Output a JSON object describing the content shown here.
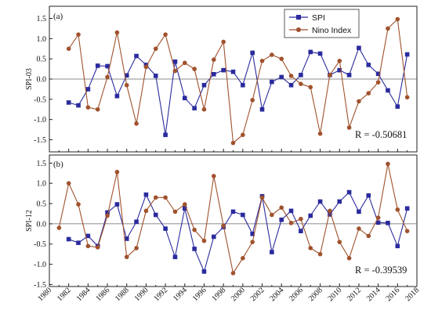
{
  "chart_data": [
    {
      "type": "line",
      "panel_label": "(a)",
      "ylabel": "SPI-03",
      "xlim": [
        1980,
        2018
      ],
      "ylim": [
        -1.8,
        1.8
      ],
      "yticks": [
        "-1.5",
        "-1.0",
        "-0.5",
        "0.0",
        "0.5",
        "1.0",
        "1.5"
      ],
      "annotation": "R = -0.50681",
      "legend_position": "top-center",
      "series": [
        {
          "name": "SPI",
          "color": "#2b2b9e",
          "marker": "square",
          "x": [
            1982,
            1983,
            1984,
            1985,
            1986,
            1987,
            1988,
            1989,
            1990,
            1991,
            1992,
            1993,
            1994,
            1995,
            1996,
            1997,
            1998,
            1999,
            2000,
            2001,
            2002,
            2003,
            2004,
            2005,
            2006,
            2007,
            2008,
            2009,
            2010,
            2011,
            2012,
            2013,
            2014,
            2015,
            2016,
            2017
          ],
          "values": [
            -0.58,
            -0.65,
            -0.25,
            0.33,
            0.32,
            -0.42,
            0.09,
            0.57,
            0.35,
            0.08,
            -1.38,
            0.43,
            -0.47,
            -0.72,
            -0.15,
            0.12,
            0.22,
            0.18,
            -0.15,
            0.65,
            -0.75,
            -0.07,
            0.05,
            -0.15,
            0.1,
            0.67,
            0.63,
            0.1,
            0.22,
            0.1,
            0.77,
            0.35,
            0.13,
            -0.28,
            -0.68,
            0.61
          ]
        },
        {
          "name": "Nino Index",
          "color": "#a0522d",
          "marker": "circle",
          "x": [
            1982,
            1983,
            1984,
            1985,
            1986,
            1987,
            1988,
            1989,
            1990,
            1991,
            1992,
            1993,
            1994,
            1995,
            1996,
            1997,
            1998,
            1999,
            2000,
            2001,
            2002,
            2003,
            2004,
            2005,
            2006,
            2007,
            2008,
            2009,
            2010,
            2011,
            2012,
            2013,
            2014,
            2015,
            2016,
            2017
          ],
          "values": [
            0.75,
            1.1,
            -0.7,
            -0.75,
            0.05,
            1.15,
            -0.15,
            -1.1,
            0.3,
            0.75,
            1.1,
            0.2,
            0.4,
            0.25,
            -0.75,
            0.48,
            0.92,
            -1.58,
            -1.38,
            -0.52,
            0.45,
            0.6,
            0.5,
            0.08,
            -0.12,
            -0.2,
            -1.35,
            0.1,
            0.45,
            -1.2,
            -0.55,
            -0.35,
            -0.08,
            1.25,
            1.48,
            -0.45
          ]
        }
      ]
    },
    {
      "type": "line",
      "panel_label": "(b)",
      "ylabel": "SPI-12",
      "xlim": [
        1980,
        2018
      ],
      "ylim": [
        -1.55,
        1.7
      ],
      "yticks": [
        "-1.5",
        "-1.0",
        "-0.5",
        "0.0",
        "0.5",
        "1.0",
        "1.5"
      ],
      "xticks": [
        "1980",
        "1982",
        "1984",
        "1986",
        "1988",
        "1990",
        "1992",
        "1994",
        "1996",
        "1998",
        "2000",
        "2002",
        "2004",
        "2006",
        "2008",
        "2010",
        "2012",
        "2014",
        "2016",
        "2018"
      ],
      "annotation": "R = -0.39539",
      "series": [
        {
          "name": "SPI",
          "color": "#2b2b9e",
          "marker": "square",
          "x": [
            1982,
            1983,
            1984,
            1985,
            1986,
            1987,
            1988,
            1989,
            1990,
            1991,
            1992,
            1993,
            1994,
            1995,
            1996,
            1997,
            1998,
            1999,
            2000,
            2001,
            2002,
            2003,
            2004,
            2005,
            2006,
            2007,
            2008,
            2009,
            2010,
            2011,
            2012,
            2013,
            2014,
            2015,
            2016,
            2017
          ],
          "values": [
            -0.38,
            -0.47,
            -0.3,
            -0.55,
            0.28,
            0.48,
            -0.37,
            0.05,
            0.72,
            0.22,
            -0.12,
            -0.82,
            0.38,
            -0.62,
            -1.18,
            -0.32,
            -0.08,
            0.3,
            0.22,
            -0.25,
            0.68,
            -0.7,
            0.1,
            0.32,
            -0.18,
            0.2,
            0.55,
            0.23,
            0.55,
            0.78,
            0.3,
            0.7,
            0.03,
            0.02,
            -0.55,
            0.38
          ]
        },
        {
          "name": "Nino Index",
          "color": "#a0522d",
          "marker": "circle",
          "x": [
            1981,
            1982,
            1983,
            1984,
            1985,
            1986,
            1987,
            1988,
            1989,
            1990,
            1991,
            1992,
            1993,
            1994,
            1995,
            1996,
            1997,
            1998,
            1999,
            2000,
            2001,
            2002,
            2003,
            2004,
            2005,
            2006,
            2007,
            2008,
            2009,
            2010,
            2011,
            2012,
            2013,
            2014,
            2015,
            2016,
            2017
          ],
          "values": [
            -0.1,
            1.0,
            0.48,
            -0.55,
            -0.58,
            0.2,
            1.28,
            -0.82,
            -0.6,
            0.32,
            0.65,
            0.65,
            0.3,
            0.48,
            -0.15,
            -0.42,
            1.18,
            -0.05,
            -1.22,
            -0.85,
            -0.45,
            0.65,
            0.22,
            0.4,
            0.02,
            0.12,
            -0.6,
            -0.75,
            0.32,
            -0.45,
            -0.85,
            -0.12,
            -0.3,
            0.15,
            1.48,
            0.35,
            -0.18
          ]
        }
      ]
    }
  ]
}
